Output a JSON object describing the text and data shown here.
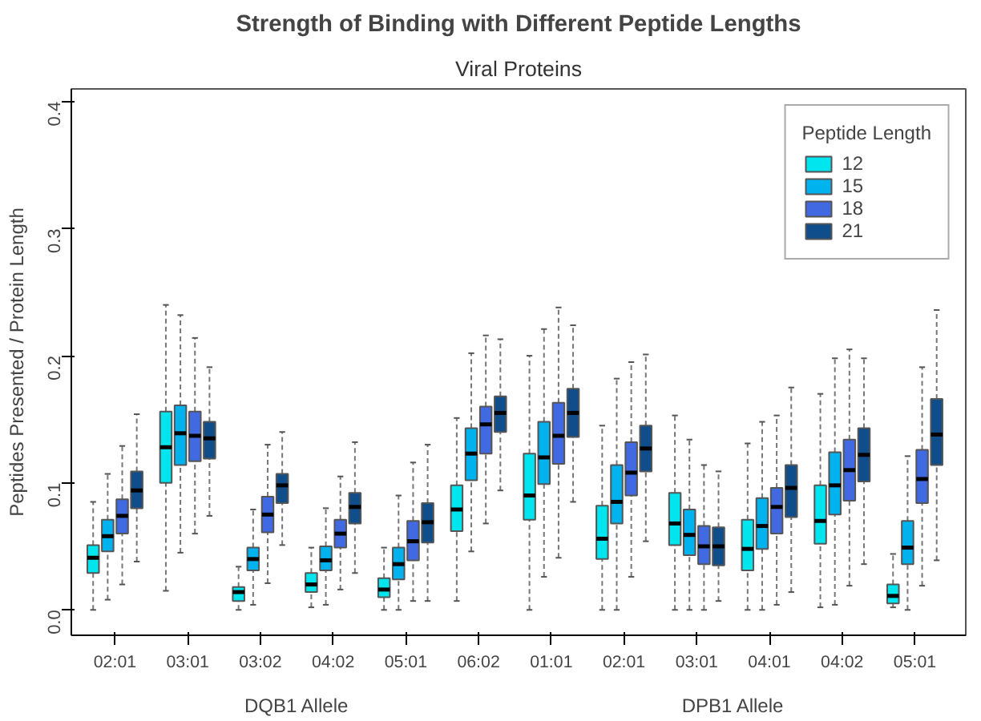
{
  "chart_data": {
    "type": "box",
    "title": "Strength of Binding with Different Peptide Lengths",
    "subtitle": "Viral Proteins",
    "ylabel": "Peptides Presented / Protein Length",
    "legend_title": "Peptide Length",
    "legend": "top right",
    "grid": false,
    "categories": [
      "02:01",
      "03:01",
      "03:02",
      "04:02",
      "05:01",
      "06:02",
      "01:01",
      "02:01",
      "03:01",
      "04:01",
      "04:02",
      "05:01"
    ],
    "annotations": [
      "DQB1 Allele",
      "DPB1 Allele"
    ],
    "ylim": [
      -0.02,
      0.41
    ],
    "yticks": [
      {
        "value": 0,
        "label": "0.0"
      },
      {
        "value": 0.1,
        "label": "0.1"
      },
      {
        "value": 0.2,
        "label": "0.2"
      },
      {
        "value": 0.3,
        "label": "0.3"
      },
      {
        "value": 0.4,
        "label": "0.4"
      }
    ],
    "series": [
      {
        "name": "12",
        "color": "#00e5ee",
        "boxes": [
          {
            "low": 0.0,
            "q1": 0.029,
            "median": 0.041,
            "q3": 0.051,
            "high": 0.085
          },
          {
            "low": 0.015,
            "q1": 0.1,
            "median": 0.128,
            "q3": 0.156,
            "high": 0.24
          },
          {
            "low": 0.0,
            "q1": 0.007,
            "median": 0.014,
            "q3": 0.018,
            "high": 0.034
          },
          {
            "low": 0.002,
            "q1": 0.014,
            "median": 0.02,
            "q3": 0.029,
            "high": 0.049
          },
          {
            "low": 0.0,
            "q1": 0.01,
            "median": 0.016,
            "q3": 0.025,
            "high": 0.049
          },
          {
            "low": 0.007,
            "q1": 0.062,
            "median": 0.079,
            "q3": 0.098,
            "high": 0.151
          },
          {
            "low": 0.0,
            "q1": 0.071,
            "median": 0.09,
            "q3": 0.123,
            "high": 0.2
          },
          {
            "low": 0.0,
            "q1": 0.04,
            "median": 0.056,
            "q3": 0.082,
            "high": 0.145
          },
          {
            "low": 0.0,
            "q1": 0.051,
            "median": 0.068,
            "q3": 0.092,
            "high": 0.153
          },
          {
            "low": 0.0,
            "q1": 0.031,
            "median": 0.048,
            "q3": 0.071,
            "high": 0.131
          },
          {
            "low": 0.002,
            "q1": 0.052,
            "median": 0.07,
            "q3": 0.098,
            "high": 0.17
          },
          {
            "low": 0.002,
            "q1": 0.005,
            "median": 0.011,
            "q3": 0.02,
            "high": 0.044
          }
        ]
      },
      {
        "name": "15",
        "color": "#00b2ee",
        "boxes": [
          {
            "low": 0.008,
            "q1": 0.046,
            "median": 0.058,
            "q3": 0.071,
            "high": 0.107
          },
          {
            "low": 0.045,
            "q1": 0.114,
            "median": 0.139,
            "q3": 0.161,
            "high": 0.232
          },
          {
            "low": 0.004,
            "q1": 0.031,
            "median": 0.04,
            "q3": 0.049,
            "high": 0.079
          },
          {
            "low": 0.004,
            "q1": 0.031,
            "median": 0.039,
            "q3": 0.05,
            "high": 0.08
          },
          {
            "low": 0.0,
            "q1": 0.024,
            "median": 0.036,
            "q3": 0.049,
            "high": 0.09
          },
          {
            "low": 0.046,
            "q1": 0.102,
            "median": 0.123,
            "q3": 0.143,
            "high": 0.202
          },
          {
            "low": 0.026,
            "q1": 0.099,
            "median": 0.12,
            "q3": 0.148,
            "high": 0.221
          },
          {
            "low": 0.0,
            "q1": 0.068,
            "median": 0.085,
            "q3": 0.114,
            "high": 0.182
          },
          {
            "low": 0.0,
            "q1": 0.043,
            "median": 0.059,
            "q3": 0.079,
            "high": 0.134
          },
          {
            "low": 0.0,
            "q1": 0.048,
            "median": 0.066,
            "q3": 0.088,
            "high": 0.148
          },
          {
            "low": 0.004,
            "q1": 0.075,
            "median": 0.098,
            "q3": 0.124,
            "high": 0.198
          },
          {
            "low": 0.0,
            "q1": 0.036,
            "median": 0.049,
            "q3": 0.07,
            "high": 0.121
          }
        ]
      },
      {
        "name": "18",
        "color": "#4169e1",
        "boxes": [
          {
            "low": 0.02,
            "q1": 0.06,
            "median": 0.074,
            "q3": 0.087,
            "high": 0.129
          },
          {
            "low": 0.06,
            "q1": 0.117,
            "median": 0.137,
            "q3": 0.156,
            "high": 0.214
          },
          {
            "low": 0.021,
            "q1": 0.061,
            "median": 0.075,
            "q3": 0.089,
            "high": 0.13
          },
          {
            "low": 0.016,
            "q1": 0.049,
            "median": 0.06,
            "q3": 0.071,
            "high": 0.105
          },
          {
            "low": 0.007,
            "q1": 0.039,
            "median": 0.054,
            "q3": 0.07,
            "high": 0.116
          },
          {
            "low": 0.068,
            "q1": 0.123,
            "median": 0.146,
            "q3": 0.16,
            "high": 0.216
          },
          {
            "low": 0.041,
            "q1": 0.115,
            "median": 0.137,
            "q3": 0.163,
            "high": 0.238
          },
          {
            "low": 0.026,
            "q1": 0.09,
            "median": 0.108,
            "q3": 0.132,
            "high": 0.195
          },
          {
            "low": 0.0,
            "q1": 0.036,
            "median": 0.05,
            "q3": 0.066,
            "high": 0.114
          },
          {
            "low": 0.004,
            "q1": 0.06,
            "median": 0.081,
            "q3": 0.096,
            "high": 0.153
          },
          {
            "low": 0.019,
            "q1": 0.086,
            "median": 0.11,
            "q3": 0.134,
            "high": 0.205
          },
          {
            "low": 0.019,
            "q1": 0.084,
            "median": 0.103,
            "q3": 0.126,
            "high": 0.191
          }
        ]
      },
      {
        "name": "21",
        "color": "#104e8b",
        "boxes": [
          {
            "low": 0.038,
            "q1": 0.08,
            "median": 0.094,
            "q3": 0.109,
            "high": 0.154
          },
          {
            "low": 0.074,
            "q1": 0.119,
            "median": 0.135,
            "q3": 0.148,
            "high": 0.191
          },
          {
            "low": 0.051,
            "q1": 0.084,
            "median": 0.098,
            "q3": 0.107,
            "high": 0.14
          },
          {
            "low": 0.029,
            "q1": 0.068,
            "median": 0.081,
            "q3": 0.092,
            "high": 0.132
          },
          {
            "low": 0.007,
            "q1": 0.053,
            "median": 0.069,
            "q3": 0.084,
            "high": 0.13
          },
          {
            "low": 0.094,
            "q1": 0.14,
            "median": 0.155,
            "q3": 0.168,
            "high": 0.213
          },
          {
            "low": 0.085,
            "q1": 0.136,
            "median": 0.155,
            "q3": 0.174,
            "high": 0.224
          },
          {
            "low": 0.054,
            "q1": 0.109,
            "median": 0.127,
            "q3": 0.145,
            "high": 0.201
          },
          {
            "low": 0.007,
            "q1": 0.035,
            "median": 0.05,
            "q3": 0.065,
            "high": 0.109
          },
          {
            "low": 0.014,
            "q1": 0.073,
            "median": 0.096,
            "q3": 0.114,
            "high": 0.175
          },
          {
            "low": 0.036,
            "q1": 0.101,
            "median": 0.122,
            "q3": 0.143,
            "high": 0.198
          },
          {
            "low": 0.039,
            "q1": 0.114,
            "median": 0.138,
            "q3": 0.166,
            "high": 0.236
          }
        ]
      }
    ]
  }
}
